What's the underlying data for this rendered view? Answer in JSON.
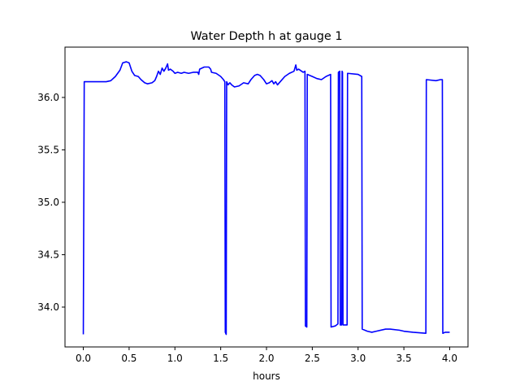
{
  "chart_data": {
    "type": "line",
    "title": "Water Depth h at gauge 1",
    "xlabel": "hours",
    "ylabel": "",
    "xlim": [
      -0.2,
      4.2
    ],
    "ylim": [
      33.62,
      36.48
    ],
    "xticks": [
      0.0,
      0.5,
      1.0,
      1.5,
      2.0,
      2.5,
      3.0,
      3.5,
      4.0
    ],
    "xtick_labels": [
      "0.0",
      "0.5",
      "1.0",
      "1.5",
      "2.0",
      "2.5",
      "3.0",
      "3.5",
      "4.0"
    ],
    "yticks": [
      34.0,
      34.5,
      35.0,
      35.5,
      36.0
    ],
    "ytick_labels": [
      "34.0",
      "34.5",
      "35.0",
      "35.5",
      "36.0"
    ],
    "grid": false,
    "color": "#0000ff",
    "series": [
      {
        "points": [
          [
            0.0,
            33.74
          ],
          [
            0.01,
            36.15
          ],
          [
            0.1,
            36.15
          ],
          [
            0.25,
            36.15
          ],
          [
            0.3,
            36.16
          ],
          [
            0.35,
            36.2
          ],
          [
            0.4,
            36.26
          ],
          [
            0.43,
            36.33
          ],
          [
            0.47,
            36.34
          ],
          [
            0.5,
            36.33
          ],
          [
            0.53,
            36.25
          ],
          [
            0.56,
            36.21
          ],
          [
            0.6,
            36.2
          ],
          [
            0.63,
            36.17
          ],
          [
            0.67,
            36.14
          ],
          [
            0.7,
            36.13
          ],
          [
            0.75,
            36.14
          ],
          [
            0.78,
            36.16
          ],
          [
            0.8,
            36.2
          ],
          [
            0.82,
            36.25
          ],
          [
            0.84,
            36.22
          ],
          [
            0.86,
            36.28
          ],
          [
            0.88,
            36.25
          ],
          [
            0.9,
            36.28
          ],
          [
            0.92,
            36.32
          ],
          [
            0.93,
            36.26
          ],
          [
            0.95,
            36.27
          ],
          [
            0.98,
            36.25
          ],
          [
            1.0,
            36.23
          ],
          [
            1.03,
            36.24
          ],
          [
            1.07,
            36.23
          ],
          [
            1.1,
            36.24
          ],
          [
            1.15,
            36.23
          ],
          [
            1.2,
            36.24
          ],
          [
            1.25,
            36.24
          ],
          [
            1.26,
            36.22
          ],
          [
            1.27,
            36.27
          ],
          [
            1.32,
            36.29
          ],
          [
            1.37,
            36.29
          ],
          [
            1.39,
            36.27
          ],
          [
            1.4,
            36.24
          ],
          [
            1.45,
            36.23
          ],
          [
            1.5,
            36.2
          ],
          [
            1.53,
            36.17
          ],
          [
            1.545,
            36.15
          ],
          [
            1.55,
            33.76
          ],
          [
            1.56,
            33.74
          ],
          [
            1.565,
            36.15
          ],
          [
            1.58,
            36.12
          ],
          [
            1.6,
            36.14
          ],
          [
            1.62,
            36.12
          ],
          [
            1.65,
            36.1
          ],
          [
            1.7,
            36.11
          ],
          [
            1.75,
            36.14
          ],
          [
            1.8,
            36.13
          ],
          [
            1.83,
            36.17
          ],
          [
            1.87,
            36.21
          ],
          [
            1.9,
            36.22
          ],
          [
            1.93,
            36.21
          ],
          [
            1.97,
            36.17
          ],
          [
            2.0,
            36.13
          ],
          [
            2.03,
            36.14
          ],
          [
            2.06,
            36.16
          ],
          [
            2.08,
            36.13
          ],
          [
            2.1,
            36.15
          ],
          [
            2.12,
            36.12
          ],
          [
            2.15,
            36.15
          ],
          [
            2.2,
            36.2
          ],
          [
            2.25,
            36.23
          ],
          [
            2.3,
            36.25
          ],
          [
            2.32,
            36.31
          ],
          [
            2.33,
            36.26
          ],
          [
            2.35,
            36.27
          ],
          [
            2.4,
            36.24
          ],
          [
            2.42,
            36.25
          ],
          [
            2.425,
            33.82
          ],
          [
            2.44,
            33.81
          ],
          [
            2.445,
            36.22
          ],
          [
            2.5,
            36.2
          ],
          [
            2.55,
            36.18
          ],
          [
            2.6,
            36.17
          ],
          [
            2.65,
            36.2
          ],
          [
            2.7,
            36.22
          ],
          [
            2.705,
            33.81
          ],
          [
            2.75,
            33.82
          ],
          [
            2.78,
            33.84
          ],
          [
            2.785,
            36.24
          ],
          [
            2.8,
            36.25
          ],
          [
            2.805,
            33.83
          ],
          [
            2.82,
            33.83
          ],
          [
            2.825,
            36.25
          ],
          [
            2.83,
            36.24
          ],
          [
            2.835,
            33.83
          ],
          [
            2.88,
            33.83
          ],
          [
            2.885,
            36.23
          ],
          [
            3.0,
            36.22
          ],
          [
            3.04,
            36.2
          ],
          [
            3.045,
            33.79
          ],
          [
            3.1,
            33.77
          ],
          [
            3.15,
            33.76
          ],
          [
            3.2,
            33.77
          ],
          [
            3.3,
            33.79
          ],
          [
            3.35,
            33.79
          ],
          [
            3.45,
            33.78
          ],
          [
            3.5,
            33.77
          ],
          [
            3.6,
            33.76
          ],
          [
            3.74,
            33.75
          ],
          [
            3.745,
            36.17
          ],
          [
            3.85,
            36.16
          ],
          [
            3.9,
            36.17
          ],
          [
            3.92,
            36.17
          ],
          [
            3.925,
            33.75
          ],
          [
            3.95,
            33.76
          ],
          [
            4.0,
            33.76
          ]
        ]
      }
    ]
  }
}
